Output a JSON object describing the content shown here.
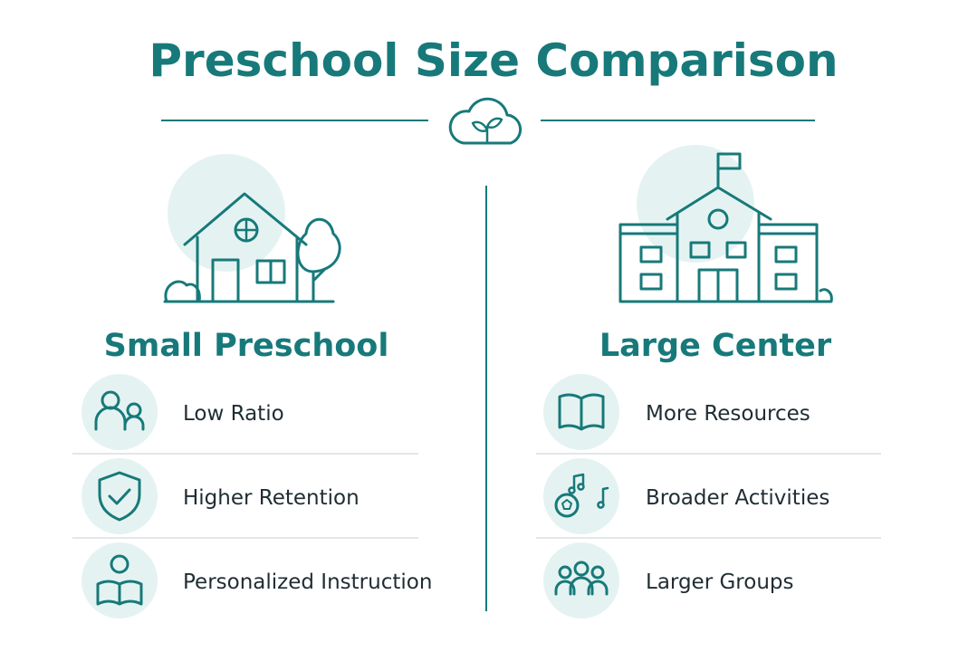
{
  "header": {
    "title": "Preschool Size Comparison"
  },
  "left": {
    "heading": "Small Preschool",
    "items": [
      "Low Ratio",
      "Higher Retention",
      "Personalized Instruction"
    ]
  },
  "right": {
    "heading": "Large Center",
    "items": [
      "More Resources",
      "Broader Activities",
      "Larger Groups"
    ]
  }
}
